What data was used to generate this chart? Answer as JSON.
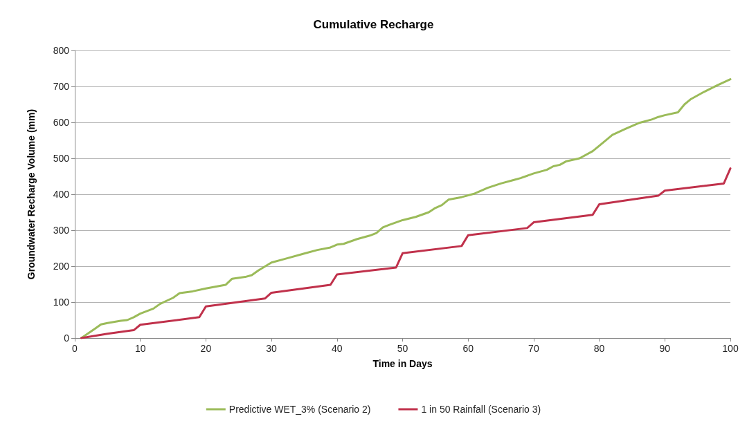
{
  "chart_data": {
    "type": "line",
    "title": "Cumulative Recharge",
    "xlabel": "Time in Days",
    "ylabel": "Groundwater Recharge Volume (mm)",
    "xlim": [
      0,
      100
    ],
    "xticks": [
      0,
      10,
      20,
      30,
      40,
      50,
      60,
      70,
      80,
      90,
      100
    ],
    "ylim": [
      0,
      800
    ],
    "yticks": [
      0,
      100,
      200,
      300,
      400,
      500,
      600,
      700,
      800
    ],
    "grid": "y",
    "legend": "bottom",
    "marker": "none",
    "line_style": "solid",
    "series": [
      {
        "name": "Predictive WET_3% (Scenario 2)",
        "color": "#9bbb59",
        "x": [
          1,
          3,
          4,
          5,
          7,
          8,
          9,
          10,
          12,
          13,
          15,
          16,
          18,
          20,
          23,
          24,
          26,
          27,
          28,
          30,
          32,
          35,
          37,
          39,
          40,
          41,
          43,
          45,
          46,
          47,
          48,
          50,
          52,
          54,
          55,
          56,
          57,
          59,
          61,
          63,
          65,
          67,
          68,
          70,
          72,
          73,
          74,
          75,
          77,
          79,
          80,
          82,
          84,
          86,
          88,
          89,
          90,
          92,
          93,
          94,
          96,
          98,
          100
        ],
        "values": [
          0,
          25,
          38,
          42,
          48,
          50,
          58,
          68,
          82,
          95,
          112,
          125,
          130,
          138,
          148,
          165,
          170,
          175,
          188,
          210,
          220,
          235,
          245,
          252,
          260,
          262,
          275,
          285,
          292,
          308,
          315,
          328,
          337,
          350,
          362,
          370,
          385,
          392,
          402,
          418,
          430,
          440,
          445,
          458,
          468,
          478,
          482,
          492,
          500,
          520,
          535,
          565,
          582,
          598,
          608,
          615,
          620,
          628,
          650,
          665,
          685,
          703,
          720
        ]
      },
      {
        "name": "1 in 50 Rainfall (Scenario 3)",
        "color": "#c0314b",
        "x": [
          1,
          5,
          9,
          10,
          19,
          20,
          29,
          30,
          39,
          40,
          49,
          50,
          59,
          60,
          69,
          70,
          79,
          80,
          89,
          90,
          99,
          100
        ],
        "values": [
          0,
          12,
          22,
          37,
          58,
          88,
          110,
          126,
          148,
          177,
          196,
          236,
          256,
          286,
          306,
          322,
          343,
          372,
          396,
          410,
          430,
          472
        ]
      }
    ]
  }
}
